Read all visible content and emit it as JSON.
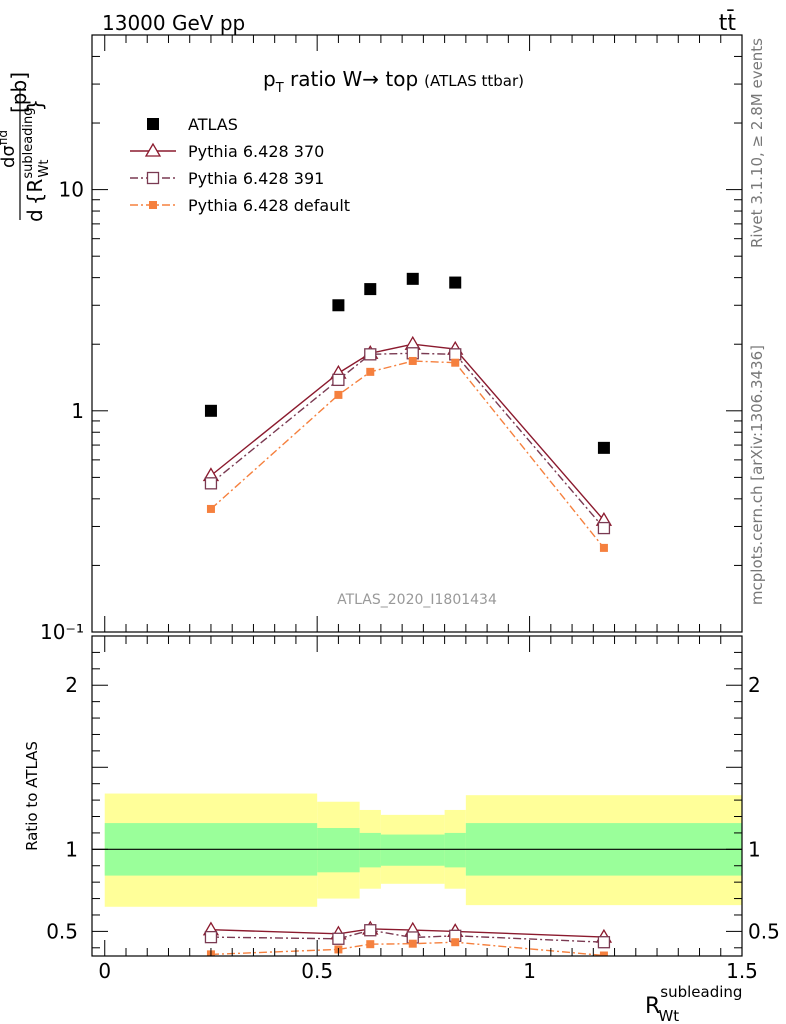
{
  "header": {
    "energy_label": "13000 GeV pp",
    "process_label": "tt̄"
  },
  "side_labels": {
    "rivet": "Rivet 3.1.10, ≥ 2.8M events",
    "mcplots": "mcplots.cern.ch [arXiv:1306.3436]"
  },
  "analysis_id": "ATLAS_2020_I1801434",
  "chart_data": [
    {
      "type": "scatter",
      "panel": "main",
      "title_main": "p",
      "title_sub": "T",
      "title_rest": " ratio W→ top",
      "title_small": "(ATLAS ttbar)",
      "ylabel": "dσ^fid / d{R_Wt^subleading} [pb]",
      "ylabel_unit": "[pb]",
      "ylabel_top": "dσ",
      "ylabel_top_sup": "fid",
      "ylabel_bottom_d": "d",
      "ylabel_bottom_R": "{R",
      "ylabel_bottom_sup": "subleading",
      "ylabel_bottom_sub": "Wt",
      "ylabel_bottom_close": "}",
      "yscale": "log",
      "ylim": [
        0.1,
        50
      ],
      "xlim": [
        -0.03,
        1.5
      ],
      "y_ticks": [
        {
          "value": 0.1,
          "label": "10⁻¹"
        },
        {
          "value": 1,
          "label": "1"
        },
        {
          "value": 10,
          "label": "10"
        }
      ],
      "legend_position": "top-left",
      "series": [
        {
          "name": "ATLAS",
          "color": "#000000",
          "marker": "filled-square",
          "x": [
            0.25,
            0.55,
            0.625,
            0.725,
            0.825,
            1.175
          ],
          "y": [
            1.0,
            3.0,
            3.55,
            3.95,
            3.8,
            0.68
          ]
        },
        {
          "name": "Pythia 6.428 370",
          "color": "#8b1a2e",
          "marker": "open-triangle",
          "line": "solid",
          "x": [
            0.25,
            0.55,
            0.625,
            0.725,
            0.825,
            1.175
          ],
          "y": [
            0.51,
            1.48,
            1.82,
            2.0,
            1.9,
            0.32
          ]
        },
        {
          "name": "Pythia 6.428 391",
          "color": "#7a3a52",
          "marker": "open-square",
          "line": "dashdot",
          "x": [
            0.25,
            0.55,
            0.625,
            0.725,
            0.825,
            1.175
          ],
          "y": [
            0.47,
            1.38,
            1.8,
            1.82,
            1.8,
            0.295
          ]
        },
        {
          "name": "Pythia 6.428 default",
          "color": "#f5803e",
          "marker": "filled-square",
          "line": "dashdot",
          "x": [
            0.25,
            0.55,
            0.625,
            0.725,
            0.825,
            1.175
          ],
          "y": [
            0.36,
            1.18,
            1.5,
            1.68,
            1.65,
            0.24
          ]
        }
      ]
    },
    {
      "type": "scatter",
      "panel": "ratio",
      "ylabel": "Ratio to ATLAS",
      "xlabel_main": "R",
      "xlabel_sup": "subleading",
      "xlabel_sub": "Wt",
      "ylim": [
        0.35,
        2.3
      ],
      "xlim": [
        -0.03,
        1.5
      ],
      "x_ticks": [
        {
          "value": 0,
          "label": "0"
        },
        {
          "value": 0.5,
          "label": "0.5"
        },
        {
          "value": 1,
          "label": "1"
        },
        {
          "value": 1.5,
          "label": "1.5"
        }
      ],
      "y_ticks": [
        {
          "value": 0.5,
          "label": "0.5"
        },
        {
          "value": 1,
          "label": "1"
        },
        {
          "value": 2,
          "label": "2"
        }
      ],
      "bands": [
        {
          "x0": 0.0,
          "x1": 0.5,
          "stat": [
            0.84,
            1.16
          ],
          "total": [
            0.65,
            1.34
          ]
        },
        {
          "x0": 0.5,
          "x1": 0.6,
          "stat": [
            0.86,
            1.13
          ],
          "total": [
            0.7,
            1.29
          ]
        },
        {
          "x0": 0.6,
          "x1": 0.65,
          "stat": [
            0.89,
            1.1
          ],
          "total": [
            0.76,
            1.24
          ]
        },
        {
          "x0": 0.65,
          "x1": 0.8,
          "stat": [
            0.9,
            1.09
          ],
          "total": [
            0.79,
            1.21
          ]
        },
        {
          "x0": 0.8,
          "x1": 0.85,
          "stat": [
            0.89,
            1.1
          ],
          "total": [
            0.76,
            1.24
          ]
        },
        {
          "x0": 0.85,
          "x1": 1.5,
          "stat": [
            0.84,
            1.16
          ],
          "total": [
            0.66,
            1.33
          ]
        }
      ],
      "band_colors": {
        "stat": "#9aff9a",
        "total": "#ffff99"
      },
      "series": [
        {
          "name": "Pythia 6.428 370",
          "color": "#8b1a2e",
          "marker": "open-triangle",
          "line": "solid",
          "x": [
            0.25,
            0.55,
            0.625,
            0.725,
            0.825,
            1.175
          ],
          "y": [
            0.51,
            0.485,
            0.515,
            0.508,
            0.5,
            0.465
          ],
          "err": [
            0,
            0,
            0.02,
            0,
            0.02,
            0
          ]
        },
        {
          "name": "Pythia 6.428 391",
          "color": "#7a3a52",
          "marker": "open-square",
          "line": "dashdot",
          "x": [
            0.25,
            0.55,
            0.625,
            0.725,
            0.825,
            1.175
          ],
          "y": [
            0.465,
            0.455,
            0.507,
            0.463,
            0.473,
            0.434
          ],
          "err": [
            0,
            0,
            0.02,
            0,
            0.02,
            0
          ]
        },
        {
          "name": "Pythia 6.428 default",
          "color": "#f5803e",
          "marker": "filled-square",
          "line": "dashdot",
          "x": [
            0.25,
            0.55,
            0.625,
            0.725,
            0.825,
            1.175
          ],
          "y": [
            0.36,
            0.39,
            0.422,
            0.425,
            0.434,
            0.353
          ],
          "err": [
            0,
            0,
            0.02,
            0,
            0.02,
            0
          ]
        }
      ]
    }
  ]
}
